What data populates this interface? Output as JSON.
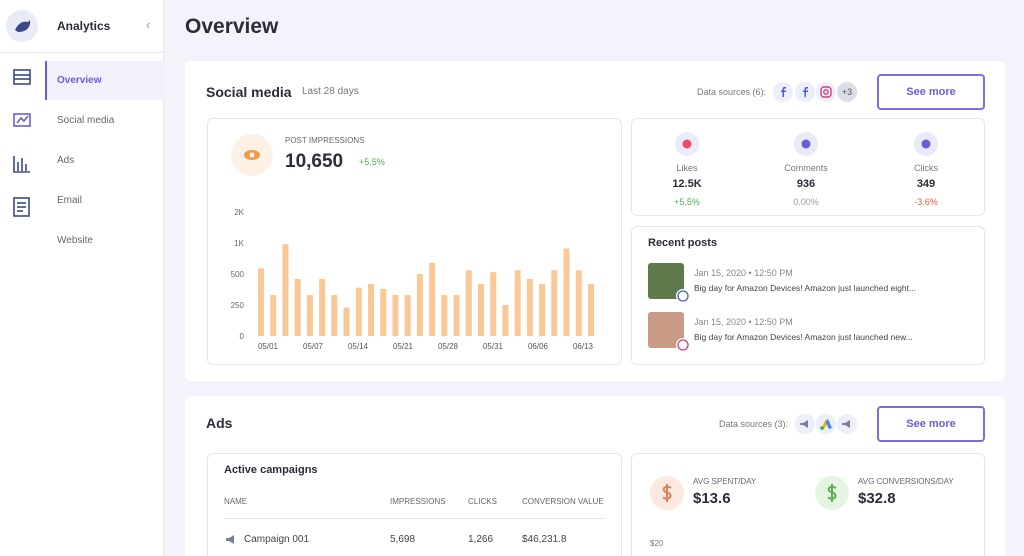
{
  "sidebar": {
    "app_title": "Analytics",
    "nav": [
      "Overview",
      "Social media",
      "Ads",
      "Email",
      "Website"
    ]
  },
  "page_title": "Overview",
  "social": {
    "title": "Social media",
    "period": "Last 28 days",
    "sources_label": "Data sources (6):",
    "more_sources": "+3",
    "button": "See more",
    "impressions": {
      "label": "POST IMPRESSIONS",
      "value": "10,650",
      "change": "+5.5%"
    },
    "stats": [
      {
        "label": "Likes",
        "value": "12.5K",
        "change": "+5.5%"
      },
      {
        "label": "Comments",
        "value": "936",
        "change": "0.00%"
      },
      {
        "label": "Clicks",
        "value": "349",
        "change": "-3.6%"
      }
    ],
    "recent_posts": {
      "title": "Recent posts",
      "posts": [
        {
          "meta": "Jan 15, 2020 • 12:50 PM",
          "text": "Big day for Amazon Devices! Amazon just launched eight..."
        },
        {
          "meta": "Jan 15, 2020 • 12:50 PM",
          "text": "Big day for Amazon Devices! Amazon just launched new..."
        }
      ]
    }
  },
  "chart_data": {
    "type": "bar",
    "color": "#f9c896",
    "values": [
      590,
      330,
      980,
      460,
      330,
      460,
      330,
      230,
      390,
      420,
      380,
      330,
      330,
      500,
      680,
      330,
      330,
      560,
      420,
      530,
      250,
      560,
      460,
      420,
      560,
      910,
      560,
      420
    ],
    "x_labels": [
      "05/01",
      "05/07",
      "05/14",
      "05/21",
      "05/28",
      "05/31",
      "06/06",
      "06/13"
    ],
    "ylim": [
      0,
      2000
    ],
    "yticks": [
      0,
      250,
      500,
      {
        "value": 1000,
        "label": "1K"
      },
      {
        "value": 2000,
        "label": "2K"
      }
    ]
  },
  "ads": {
    "title": "Ads",
    "sources_label": "Data sources (3):",
    "button": "See more",
    "campaigns": {
      "title": "Active campaigns",
      "columns": [
        "NAME",
        "IMPRESSIONS",
        "CLICKS",
        "CONVERSION VALUE"
      ],
      "rows": [
        [
          "Campaign 001",
          "5,698",
          "1,266",
          "$46,231.8"
        ]
      ]
    },
    "averages": [
      {
        "label": "AVG SPENT/DAY",
        "value": "$13.6"
      },
      {
        "label": "AVG CONVERSIONS/DAY",
        "value": "$32.8"
      }
    ],
    "chart_axis_label": "$20"
  }
}
